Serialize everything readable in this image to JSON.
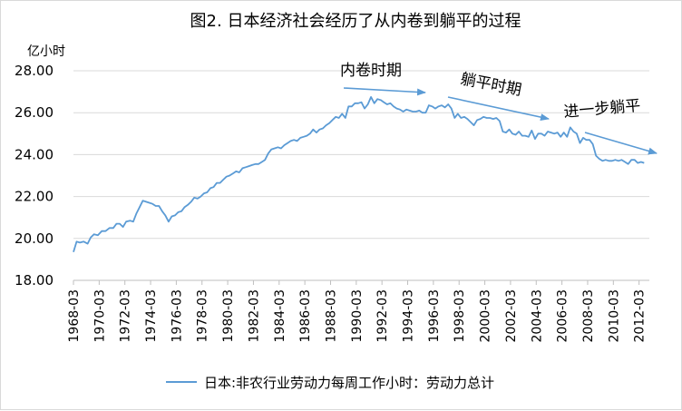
{
  "chart_data": {
    "type": "line",
    "title": "图2. 日本经济社会经历了从内卷到躺平的过程",
    "ylabel": "亿小时",
    "xlabel": "",
    "ylim": [
      18,
      28
    ],
    "yticks": [
      "18.00",
      "20.00",
      "22.00",
      "24.00",
      "26.00",
      "28.00"
    ],
    "xticks": [
      "1968-03",
      "1970-03",
      "1972-03",
      "1974-03",
      "1976-03",
      "1978-03",
      "1980-03",
      "1982-03",
      "1984-03",
      "1986-03",
      "1988-03",
      "1990-03",
      "1992-03",
      "1994-03",
      "1996-03",
      "1998-03",
      "2000-03",
      "2002-03",
      "2004-03",
      "2006-03",
      "2008-03",
      "2010-03",
      "2012-03"
    ],
    "grid": "horizontal",
    "legend_position": "bottom",
    "line_color": "#5b9bd5",
    "annotations": [
      "内卷时期",
      "躺平时期",
      "进一步躺平"
    ],
    "series": [
      {
        "name": "日本:非农行业劳动力每周工作小时：劳动力总计",
        "points": [
          [
            1968.2,
            19.35
          ],
          [
            1968.45,
            19.85
          ],
          [
            1968.7,
            19.8
          ],
          [
            1969.0,
            19.85
          ],
          [
            1969.3,
            19.75
          ],
          [
            1969.55,
            20.05
          ],
          [
            1969.8,
            20.2
          ],
          [
            1970.1,
            20.15
          ],
          [
            1970.4,
            20.35
          ],
          [
            1970.7,
            20.35
          ],
          [
            1971.0,
            20.5
          ],
          [
            1971.3,
            20.5
          ],
          [
            1971.55,
            20.7
          ],
          [
            1971.8,
            20.7
          ],
          [
            1972.05,
            20.55
          ],
          [
            1972.3,
            20.8
          ],
          [
            1972.6,
            20.85
          ],
          [
            1972.85,
            20.8
          ],
          [
            1973.1,
            21.2
          ],
          [
            1973.35,
            21.5
          ],
          [
            1973.6,
            21.8
          ],
          [
            1973.85,
            21.75
          ],
          [
            1974.1,
            21.7
          ],
          [
            1974.35,
            21.65
          ],
          [
            1974.6,
            21.55
          ],
          [
            1974.85,
            21.55
          ],
          [
            1975.1,
            21.3
          ],
          [
            1975.35,
            21.1
          ],
          [
            1975.6,
            20.8
          ],
          [
            1975.85,
            21.05
          ],
          [
            1976.1,
            21.1
          ],
          [
            1976.35,
            21.25
          ],
          [
            1976.6,
            21.3
          ],
          [
            1976.85,
            21.5
          ],
          [
            1977.1,
            21.6
          ],
          [
            1977.35,
            21.75
          ],
          [
            1977.6,
            21.95
          ],
          [
            1977.85,
            21.9
          ],
          [
            1978.1,
            22.0
          ],
          [
            1978.35,
            22.15
          ],
          [
            1978.6,
            22.2
          ],
          [
            1978.85,
            22.4
          ],
          [
            1979.1,
            22.45
          ],
          [
            1979.35,
            22.65
          ],
          [
            1979.6,
            22.65
          ],
          [
            1979.85,
            22.8
          ],
          [
            1980.1,
            22.95
          ],
          [
            1980.35,
            23.0
          ],
          [
            1980.6,
            23.1
          ],
          [
            1980.85,
            23.2
          ],
          [
            1981.1,
            23.15
          ],
          [
            1981.35,
            23.35
          ],
          [
            1981.6,
            23.4
          ],
          [
            1981.85,
            23.45
          ],
          [
            1982.1,
            23.5
          ],
          [
            1982.35,
            23.55
          ],
          [
            1982.6,
            23.55
          ],
          [
            1982.85,
            23.65
          ],
          [
            1983.1,
            23.75
          ],
          [
            1983.35,
            24.05
          ],
          [
            1983.6,
            24.25
          ],
          [
            1983.85,
            24.3
          ],
          [
            1984.1,
            24.35
          ],
          [
            1984.35,
            24.3
          ],
          [
            1984.6,
            24.45
          ],
          [
            1984.85,
            24.55
          ],
          [
            1985.1,
            24.65
          ],
          [
            1985.35,
            24.7
          ],
          [
            1985.6,
            24.65
          ],
          [
            1985.85,
            24.8
          ],
          [
            1986.1,
            24.85
          ],
          [
            1986.35,
            24.9
          ],
          [
            1986.6,
            25.0
          ],
          [
            1986.85,
            25.2
          ],
          [
            1987.1,
            25.05
          ],
          [
            1987.35,
            25.2
          ],
          [
            1987.6,
            25.25
          ],
          [
            1987.85,
            25.4
          ],
          [
            1988.1,
            25.5
          ],
          [
            1988.35,
            25.65
          ],
          [
            1988.6,
            25.8
          ],
          [
            1988.85,
            25.75
          ],
          [
            1989.1,
            25.95
          ],
          [
            1989.35,
            25.75
          ],
          [
            1989.6,
            26.3
          ],
          [
            1989.85,
            26.3
          ],
          [
            1990.1,
            26.45
          ],
          [
            1990.35,
            26.45
          ],
          [
            1990.6,
            26.5
          ],
          [
            1990.85,
            26.2
          ],
          [
            1991.1,
            26.4
          ],
          [
            1991.35,
            26.75
          ],
          [
            1991.6,
            26.45
          ],
          [
            1991.85,
            26.65
          ],
          [
            1992.1,
            26.6
          ],
          [
            1992.35,
            26.5
          ],
          [
            1992.6,
            26.4
          ],
          [
            1992.85,
            26.45
          ],
          [
            1993.1,
            26.3
          ],
          [
            1993.35,
            26.2
          ],
          [
            1993.6,
            26.15
          ],
          [
            1993.85,
            26.05
          ],
          [
            1994.1,
            26.15
          ],
          [
            1994.35,
            26.1
          ],
          [
            1994.6,
            26.05
          ],
          [
            1994.85,
            26.05
          ],
          [
            1995.1,
            26.1
          ],
          [
            1995.35,
            26.0
          ],
          [
            1995.6,
            26.0
          ],
          [
            1995.85,
            26.35
          ],
          [
            1996.1,
            26.3
          ],
          [
            1996.35,
            26.2
          ],
          [
            1996.6,
            26.3
          ],
          [
            1996.85,
            26.35
          ],
          [
            1997.1,
            26.25
          ],
          [
            1997.35,
            26.4
          ],
          [
            1997.6,
            26.2
          ],
          [
            1997.85,
            25.75
          ],
          [
            1998.1,
            25.95
          ],
          [
            1998.35,
            25.75
          ],
          [
            1998.6,
            25.8
          ],
          [
            1998.85,
            25.7
          ],
          [
            1999.1,
            25.55
          ],
          [
            1999.35,
            25.4
          ],
          [
            1999.6,
            25.65
          ],
          [
            1999.85,
            25.7
          ],
          [
            2000.1,
            25.8
          ],
          [
            2000.35,
            25.75
          ],
          [
            2000.6,
            25.75
          ],
          [
            2000.85,
            25.7
          ],
          [
            2001.1,
            25.75
          ],
          [
            2001.35,
            25.6
          ],
          [
            2001.6,
            25.1
          ],
          [
            2001.85,
            25.05
          ],
          [
            2002.1,
            25.2
          ],
          [
            2002.35,
            25.0
          ],
          [
            2002.6,
            24.95
          ],
          [
            2002.85,
            25.1
          ],
          [
            2003.1,
            24.9
          ],
          [
            2003.35,
            24.9
          ],
          [
            2003.6,
            24.85
          ],
          [
            2003.85,
            25.15
          ],
          [
            2004.1,
            24.75
          ],
          [
            2004.35,
            25.0
          ],
          [
            2004.6,
            25.0
          ],
          [
            2004.85,
            24.9
          ],
          [
            2005.1,
            25.1
          ],
          [
            2005.35,
            25.05
          ],
          [
            2005.6,
            25.0
          ],
          [
            2005.85,
            25.05
          ],
          [
            2006.1,
            24.85
          ],
          [
            2006.35,
            25.05
          ],
          [
            2006.6,
            24.85
          ],
          [
            2006.85,
            25.3
          ],
          [
            2007.1,
            25.1
          ],
          [
            2007.35,
            25.0
          ],
          [
            2007.6,
            24.55
          ],
          [
            2007.85,
            24.8
          ],
          [
            2008.1,
            24.7
          ],
          [
            2008.35,
            24.7
          ],
          [
            2008.6,
            24.5
          ],
          [
            2008.85,
            23.95
          ],
          [
            2009.1,
            23.8
          ],
          [
            2009.35,
            23.7
          ],
          [
            2009.6,
            23.75
          ],
          [
            2009.85,
            23.7
          ],
          [
            2010.1,
            23.7
          ],
          [
            2010.35,
            23.75
          ],
          [
            2010.6,
            23.7
          ],
          [
            2010.85,
            23.75
          ],
          [
            2011.1,
            23.65
          ],
          [
            2011.35,
            23.55
          ],
          [
            2011.6,
            23.75
          ],
          [
            2011.85,
            23.75
          ],
          [
            2012.1,
            23.6
          ],
          [
            2012.35,
            23.65
          ],
          [
            2012.6,
            23.6
          ]
        ]
      }
    ]
  }
}
